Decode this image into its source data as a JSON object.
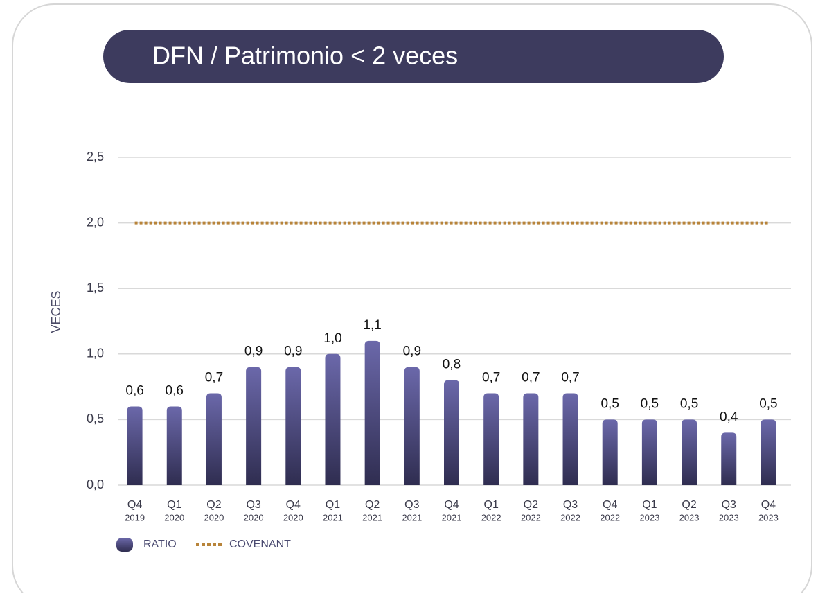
{
  "chart_data": {
    "type": "bar",
    "title": "DFN / Patrimonio < 2 veces",
    "y_label": "VECES",
    "categories": [
      [
        "Q4",
        "2019"
      ],
      [
        "Q1",
        "2020"
      ],
      [
        "Q2",
        "2020"
      ],
      [
        "Q3",
        "2020"
      ],
      [
        "Q4",
        "2020"
      ],
      [
        "Q1",
        "2021"
      ],
      [
        "Q2",
        "2021"
      ],
      [
        "Q3",
        "2021"
      ],
      [
        "Q4",
        "2021"
      ],
      [
        "Q1",
        "2022"
      ],
      [
        "Q2",
        "2022"
      ],
      [
        "Q3",
        "2022"
      ],
      [
        "Q4",
        "2022"
      ],
      [
        "Q1",
        "2023"
      ],
      [
        "Q2",
        "2023"
      ],
      [
        "Q3",
        "2023"
      ],
      [
        "Q4",
        "2023"
      ]
    ],
    "series": [
      {
        "name": "RATIO",
        "type": "bar",
        "color": "#4f4c85",
        "values": [
          0.6,
          0.6,
          0.7,
          0.9,
          0.9,
          1.0,
          1.1,
          0.9,
          0.8,
          0.7,
          0.7,
          0.7,
          0.5,
          0.5,
          0.5,
          0.4,
          0.5
        ],
        "value_labels": [
          "0,6",
          "0,6",
          "0,7",
          "0,9",
          "0,9",
          "1,0",
          "1,1",
          "0,9",
          "0,8",
          "0,7",
          "0,7",
          "0,7",
          "0,5",
          "0,5",
          "0,5",
          "0,4",
          "0,5"
        ]
      },
      {
        "name": "COVENANT",
        "type": "line",
        "color": "#b8843a",
        "values": [
          2,
          2,
          2,
          2,
          2,
          2,
          2,
          2,
          2,
          2,
          2,
          2,
          2,
          2,
          2,
          2,
          2
        ]
      }
    ],
    "ylim": [
      0,
      2.5
    ],
    "yticks": [
      {
        "value": 0,
        "label": "0,0"
      },
      {
        "value": 0.5,
        "label": "0,5"
      },
      {
        "value": 1,
        "label": "1,0"
      },
      {
        "value": 1.5,
        "label": "1,5"
      },
      {
        "value": 2,
        "label": "2,0"
      },
      {
        "value": 2.5,
        "label": "2,5"
      }
    ],
    "grid": true,
    "legend": "bottom-left"
  }
}
